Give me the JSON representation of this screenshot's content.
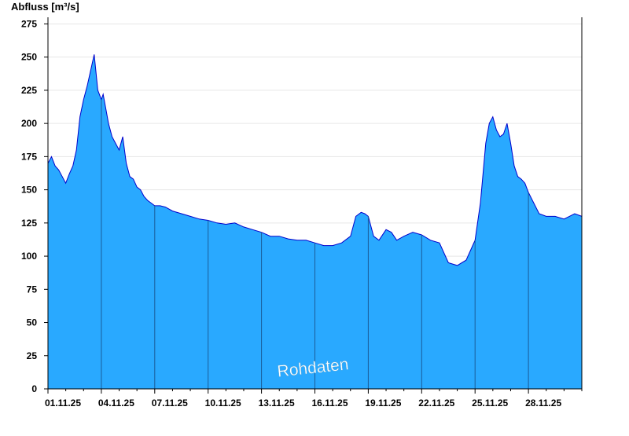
{
  "chart_data": {
    "type": "area",
    "ylabel": "Abfluss [m³/s]",
    "ylim": [
      0,
      280
    ],
    "yticks": [
      0,
      25,
      50,
      75,
      100,
      125,
      150,
      175,
      200,
      225,
      250,
      275
    ],
    "xlim_days": [
      0,
      30
    ],
    "xtick_labels": [
      "01.11.25",
      "04.11.25",
      "07.11.25",
      "10.11.25",
      "13.11.25",
      "16.11.25",
      "19.11.25",
      "22.11.25",
      "25.11.25",
      "28.11.25"
    ],
    "grid": "horizontal",
    "watermark": "Rohdaten",
    "fill_color": "#29a9ff",
    "line_color": "#0000cc",
    "series": [
      {
        "x": [
          0,
          0.2,
          0.4,
          0.6,
          0.8,
          1.0,
          1.2,
          1.4,
          1.6,
          1.8,
          2.0,
          2.2,
          2.4,
          2.6,
          2.8,
          3.0,
          3.1,
          3.2,
          3.4,
          3.6,
          3.8,
          4.0,
          4.2,
          4.4,
          4.6,
          4.8,
          5.0,
          5.2,
          5.4,
          5.6,
          5.8,
          6.0,
          6.3,
          6.6,
          7.0,
          7.5,
          8.0,
          8.5,
          9.0,
          9.5,
          10.0,
          10.5,
          11.0,
          11.5,
          12.0,
          12.5,
          13.0,
          13.5,
          14.0,
          14.5,
          15.0,
          15.5,
          16.0,
          16.5,
          17.0,
          17.3,
          17.6,
          17.8,
          18.0,
          18.3,
          18.6,
          19.0,
          19.3,
          19.6,
          20.0,
          20.5,
          21.0,
          21.5,
          22.0,
          22.5,
          23.0,
          23.5,
          24.0,
          24.3,
          24.6,
          24.8,
          25.0,
          25.2,
          25.4,
          25.6,
          25.8,
          26.0,
          26.2,
          26.4,
          26.6,
          26.8,
          27.0,
          27.3,
          27.6,
          28.0,
          28.5,
          29.0,
          29.3,
          29.6,
          30.0
        ],
        "y": [
          170,
          175,
          168,
          165,
          160,
          155,
          162,
          168,
          180,
          205,
          218,
          228,
          240,
          252,
          225,
          218,
          222,
          215,
          200,
          190,
          185,
          180,
          190,
          170,
          160,
          158,
          152,
          150,
          145,
          142,
          140,
          138,
          138,
          137,
          134,
          132,
          130,
          128,
          127,
          125,
          124,
          125,
          122,
          120,
          118,
          115,
          115,
          113,
          112,
          112,
          110,
          108,
          108,
          110,
          115,
          130,
          133,
          132,
          130,
          115,
          112,
          120,
          118,
          112,
          115,
          118,
          116,
          112,
          110,
          95,
          93,
          97,
          112,
          140,
          185,
          200,
          205,
          195,
          190,
          192,
          200,
          185,
          168,
          160,
          158,
          155,
          148,
          140,
          132,
          130,
          130,
          128,
          130,
          132,
          130
        ]
      }
    ]
  }
}
